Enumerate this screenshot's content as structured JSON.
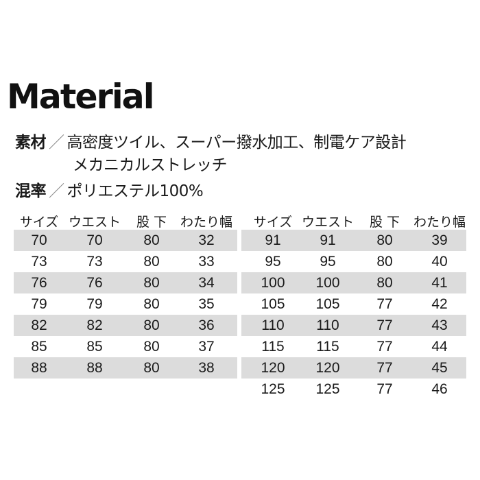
{
  "title": "Material",
  "material": {
    "label": "素材",
    "sep": "／",
    "line1": "高密度ツイル、スーパー撥水加工、制電ケア設計",
    "line2": "メカニカルストレッチ"
  },
  "blend": {
    "label": "混率",
    "sep": "／",
    "value": "ポリエステル100%"
  },
  "headers": [
    "サイズ",
    "ウエスト",
    "股 下",
    "わたり幅"
  ],
  "left_rows": [
    [
      "70",
      "70",
      "80",
      "32"
    ],
    [
      "73",
      "73",
      "80",
      "33"
    ],
    [
      "76",
      "76",
      "80",
      "34"
    ],
    [
      "79",
      "79",
      "80",
      "35"
    ],
    [
      "82",
      "82",
      "80",
      "36"
    ],
    [
      "85",
      "85",
      "80",
      "37"
    ],
    [
      "88",
      "88",
      "80",
      "38"
    ]
  ],
  "right_rows": [
    [
      "91",
      "91",
      "80",
      "39"
    ],
    [
      "95",
      "95",
      "80",
      "40"
    ],
    [
      "100",
      "100",
      "80",
      "41"
    ],
    [
      "105",
      "105",
      "77",
      "42"
    ],
    [
      "110",
      "110",
      "77",
      "43"
    ],
    [
      "115",
      "115",
      "77",
      "44"
    ],
    [
      "120",
      "120",
      "77",
      "45"
    ],
    [
      "125",
      "125",
      "77",
      "46"
    ]
  ],
  "colors": {
    "row_shade": "#dcdcdc"
  }
}
